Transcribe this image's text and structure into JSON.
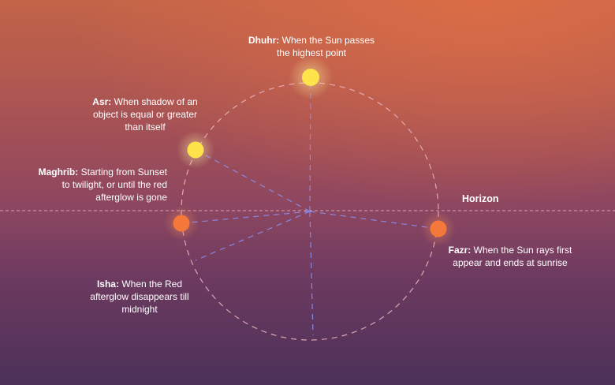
{
  "horizon": {
    "label": "Horizon"
  },
  "prayers": [
    {
      "id": "dhuhr",
      "name": "Dhuhr:",
      "text": "When the Sun passes the highest point"
    },
    {
      "id": "asr",
      "name": "Asr:",
      "text": "When shadow of an object is equal or greater than itself"
    },
    {
      "id": "maghrib",
      "name": "Maghrib:",
      "text": "Starting from Sunset to twilight, or until the red afterglow is gone"
    },
    {
      "id": "isha",
      "name": "Isha:",
      "text": "When the Red afterglow disappears till midnight"
    },
    {
      "id": "fazr",
      "name": "Fazr:",
      "text": "When the Sun rays first appear and ends at sunrise"
    }
  ],
  "colors": {
    "sun_yellow": "#ffe34a",
    "sun_orange": "#f4783a",
    "moon": "#ffffff",
    "circle_path": "#ebb3be",
    "radial_lines": "#8b8ff0"
  },
  "icons": [
    "sun-icon",
    "crescent-moon-icon"
  ]
}
